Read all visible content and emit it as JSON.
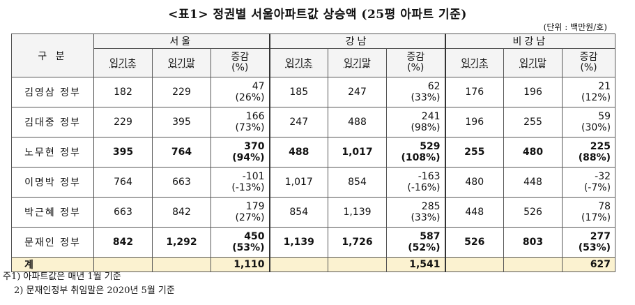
{
  "title": "<표1> 정권별 서울아파트값 상승액 (25평 아파트 기준)",
  "unit": "(단위 : 백만원/호)",
  "header": {
    "row_label": "구  분",
    "groups": [
      "서울",
      "강남",
      "비강남"
    ],
    "sub": {
      "start": "임기초",
      "end": "임기말",
      "change_line1": "증감",
      "change_line2": "(%)"
    }
  },
  "rows": [
    {
      "label": "김영삼 정부",
      "seoul": [
        "182",
        "229",
        "47",
        "(26%)"
      ],
      "gangnam": [
        "185",
        "247",
        "62",
        "(33%)"
      ],
      "non": [
        "176",
        "196",
        "21",
        "(12%)"
      ]
    },
    {
      "label": "김대중 정부",
      "seoul": [
        "229",
        "395",
        "166",
        "(73%)"
      ],
      "gangnam": [
        "247",
        "488",
        "241",
        "(98%)"
      ],
      "non": [
        "196",
        "255",
        "59",
        "(30%)"
      ]
    },
    {
      "label": "노무현 정부",
      "seoul": [
        "395",
        "764",
        "370",
        "(94%)"
      ],
      "gangnam": [
        "488",
        "1,017",
        "529",
        "(108%)"
      ],
      "non": [
        "255",
        "480",
        "225",
        "(88%)"
      ]
    },
    {
      "label": "이명박 정부",
      "seoul": [
        "764",
        "663",
        "-101",
        "(-13%)"
      ],
      "gangnam": [
        "1,017",
        "854",
        "-163",
        "(-16%)"
      ],
      "non": [
        "480",
        "448",
        "-32",
        "(-7%)"
      ]
    },
    {
      "label": "박근혜 정부",
      "seoul": [
        "663",
        "842",
        "179",
        "(27%)"
      ],
      "gangnam": [
        "854",
        "1,139",
        "285",
        "(33%)"
      ],
      "non": [
        "448",
        "526",
        "78",
        "(17%)"
      ]
    },
    {
      "label": "문재인 정부",
      "seoul": [
        "842",
        "1,292",
        "450",
        "(53%)"
      ],
      "gangnam": [
        "1,139",
        "1,726",
        "587",
        "(52%)"
      ],
      "non": [
        "526",
        "803",
        "277",
        "(53%)"
      ]
    }
  ],
  "total": {
    "label": "계",
    "seoul": "1,110",
    "gangnam": "1,541",
    "non": "627"
  },
  "notes": [
    "주1) 아파트값은 매년 1월 기준",
    "2) 문재인정부 취임말은 2020년 5월 기준"
  ]
}
